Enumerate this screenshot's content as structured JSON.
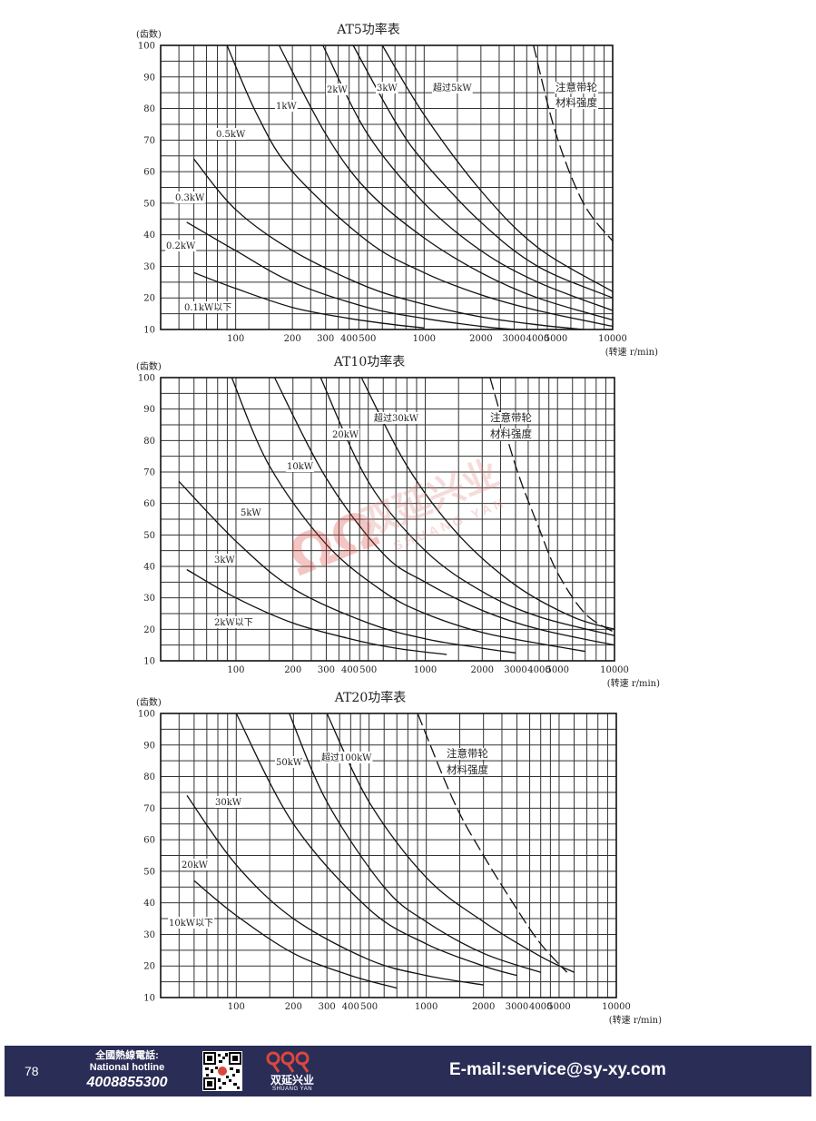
{
  "chart_data": [
    {
      "type": "line",
      "title": "AT5功率表",
      "ylabel": "(齿数)",
      "xlabel": "(转速 r/min)",
      "x_scale": "log",
      "xlim": [
        40,
        10000
      ],
      "ylim": [
        10,
        100
      ],
      "grid": true,
      "yticks": [
        10,
        20,
        30,
        40,
        50,
        60,
        70,
        80,
        90,
        100
      ],
      "xticks": [
        100,
        200,
        300,
        400,
        500,
        1000,
        2000,
        3000,
        4000,
        5000,
        10000
      ],
      "xgrid": [
        40,
        50,
        60,
        70,
        80,
        90,
        100,
        150,
        200,
        250,
        300,
        350,
        400,
        450,
        500,
        600,
        700,
        800,
        900,
        1000,
        1500,
        2000,
        2500,
        3000,
        3500,
        4000,
        4500,
        5000,
        6000,
        7000,
        8000,
        9000,
        10000
      ],
      "series": [
        {
          "name": "0.1kW以下",
          "x": [
            60,
            100,
            200,
            400,
            700,
            1000
          ],
          "y": [
            28,
            23,
            17,
            13.5,
            11.5,
            10.5
          ]
        },
        {
          "name": "0.2kW",
          "x": [
            55,
            100,
            200,
            500,
            1000,
            2000,
            3000
          ],
          "y": [
            44,
            35,
            25,
            17,
            13.5,
            11,
            10
          ]
        },
        {
          "name": "0.3kW",
          "x": [
            60,
            100,
            200,
            500,
            1000,
            2000,
            4000,
            7000
          ],
          "y": [
            64,
            48,
            35,
            23.5,
            18,
            14,
            11.5,
            10
          ]
        },
        {
          "name": "0.5kW",
          "x": [
            90,
            130,
            200,
            500,
            1000,
            2000,
            4000,
            10000
          ],
          "y": [
            100,
            78,
            60,
            38,
            28,
            21,
            16,
            11
          ]
        },
        {
          "name": "1kW",
          "x": [
            170,
            300,
            500,
            1000,
            2000,
            4000,
            10000
          ],
          "y": [
            100,
            72,
            54,
            39,
            28,
            20,
            13
          ]
        },
        {
          "name": "2kW",
          "x": [
            290,
            500,
            1000,
            2000,
            4000,
            10000
          ],
          "y": [
            100,
            72,
            50,
            35,
            25,
            16
          ]
        },
        {
          "name": "3kW",
          "x": [
            420,
            700,
            1000,
            2000,
            4000,
            10000
          ],
          "y": [
            100,
            76,
            63,
            44,
            30,
            20
          ]
        },
        {
          "name": "超过5kW",
          "x": [
            600,
            1000,
            2000,
            4000,
            10000
          ],
          "y": [
            100,
            78,
            54,
            36,
            22
          ]
        },
        {
          "name": "注意带轮材料强度",
          "style": "dashed",
          "x": [
            3800,
            5000,
            7000,
            10000
          ],
          "y": [
            100,
            72,
            50,
            38
          ]
        }
      ],
      "annotations": [
        "0.1kW以下",
        "0.2kW",
        "0.3kW",
        "0.5kW",
        "1kW",
        "2kW",
        "3kW",
        "超过5kW",
        "注意带轮",
        "材料强度"
      ]
    },
    {
      "type": "line",
      "title": "AT10功率表",
      "ylabel": "(齿数)",
      "xlabel": "(转速 r/min)",
      "x_scale": "log",
      "xlim": [
        40,
        10000
      ],
      "ylim": [
        10,
        100
      ],
      "grid": true,
      "yticks": [
        10,
        20,
        30,
        40,
        50,
        60,
        70,
        80,
        90,
        100
      ],
      "xticks": [
        100,
        200,
        300,
        400,
        500,
        1000,
        2000,
        3000,
        4000,
        5000,
        10000
      ],
      "xgrid": [
        40,
        50,
        60,
        70,
        80,
        90,
        100,
        150,
        200,
        250,
        300,
        350,
        400,
        450,
        500,
        600,
        700,
        800,
        900,
        1000,
        1500,
        2000,
        2500,
        3000,
        3500,
        4000,
        4500,
        5000,
        6000,
        7000,
        8000,
        9000,
        10000
      ],
      "series": [
        {
          "name": "2kW以下",
          "x": [
            55,
            100,
            200,
            400,
            700,
            1300
          ],
          "y": [
            39,
            30,
            22,
            17,
            14,
            12
          ]
        },
        {
          "name": "3kW",
          "x": [
            50,
            100,
            200,
            500,
            1000,
            2000,
            3000
          ],
          "y": [
            67,
            48,
            33,
            22,
            17,
            14,
            12.5
          ]
        },
        {
          "name": "5kW",
          "x": [
            95,
            150,
            300,
            600,
            1000,
            2000,
            4000,
            7000
          ],
          "y": [
            100,
            72,
            47,
            32,
            25,
            19,
            15.5,
            13
          ]
        },
        {
          "name": "10kW",
          "x": [
            160,
            300,
            600,
            1000,
            2000,
            4000,
            10000
          ],
          "y": [
            100,
            68,
            44,
            35,
            26,
            20,
            15
          ]
        },
        {
          "name": "20kW",
          "x": [
            280,
            500,
            1000,
            2000,
            4000,
            10000
          ],
          "y": [
            100,
            67,
            45,
            32,
            24,
            18
          ]
        },
        {
          "name": "超过30kW",
          "x": [
            460,
            800,
            1500,
            3000,
            6000,
            10000
          ],
          "y": [
            100,
            72,
            50,
            34,
            24,
            20
          ]
        },
        {
          "name": "注意带轮材料强度",
          "style": "dashed",
          "x": [
            2200,
            3000,
            4000,
            5000,
            7000,
            10000
          ],
          "y": [
            100,
            72,
            52,
            38,
            25,
            19
          ]
        }
      ],
      "annotations": [
        "2kW以下",
        "3kW",
        "5kW",
        "10kW",
        "20kW",
        "超过30kW",
        "注意带轮",
        "材料强度"
      ]
    },
    {
      "type": "line",
      "title": "AT20功率表",
      "ylabel": "(齿数)",
      "xlabel": "(转速 r/min)",
      "x_scale": "log",
      "xlim": [
        40,
        10000
      ],
      "ylim": [
        10,
        100
      ],
      "grid": true,
      "yticks": [
        10,
        20,
        30,
        40,
        50,
        60,
        70,
        80,
        90,
        100
      ],
      "xticks": [
        100,
        200,
        300,
        400,
        500,
        1000,
        2000,
        3000,
        4000,
        5000,
        10000
      ],
      "xgrid": [
        40,
        50,
        60,
        70,
        80,
        90,
        100,
        150,
        200,
        250,
        300,
        350,
        400,
        450,
        500,
        600,
        700,
        800,
        900,
        1000,
        1500,
        2000,
        2500,
        3000,
        3500,
        4000,
        4500,
        5000,
        6000,
        7000,
        8000,
        9000,
        10000
      ],
      "series": [
        {
          "name": "10kW以下",
          "x": [
            60,
            100,
            200,
            400,
            700
          ],
          "y": [
            47,
            36,
            24,
            17,
            13
          ]
        },
        {
          "name": "20kW",
          "x": [
            55,
            100,
            200,
            500,
            1000,
            2000
          ],
          "y": [
            74,
            52,
            35,
            22,
            17,
            14
          ]
        },
        {
          "name": "30kW",
          "x": [
            100,
            200,
            500,
            1000,
            2000,
            3000
          ],
          "y": [
            100,
            65,
            38,
            27,
            20,
            17
          ]
        },
        {
          "name": "50kW",
          "x": [
            190,
            300,
            600,
            1000,
            2000,
            4000
          ],
          "y": [
            100,
            72,
            45,
            34,
            24,
            18
          ]
        },
        {
          "name": "超过100kW",
          "x": [
            300,
            500,
            1000,
            2000,
            4000,
            6000
          ],
          "y": [
            100,
            72,
            48,
            34,
            23,
            18
          ]
        },
        {
          "name": "注意带轮材料强度",
          "style": "dashed",
          "x": [
            900,
            1400,
            2000,
            3000,
            4000,
            5500
          ],
          "y": [
            100,
            72,
            55,
            38,
            27,
            18
          ]
        }
      ],
      "annotations": [
        "10kW以下",
        "20kW",
        "30kW",
        "50kW",
        "超过100kW",
        "注意带轮",
        "材料强度"
      ]
    }
  ],
  "footer": {
    "page_number": "78",
    "hotline_cn": "全國熱線電話:",
    "hotline_en": "National hotline",
    "hotline_number": "4008855300",
    "logo_cn": "双延兴业",
    "logo_en": "SHUANG YAN",
    "email": "E-mail:service@sy-xy.com",
    "background_color": "#2a2d56"
  },
  "watermark": {
    "cn": "双延兴业",
    "en": "SHUANG YAN",
    "color": "#d9473f"
  }
}
